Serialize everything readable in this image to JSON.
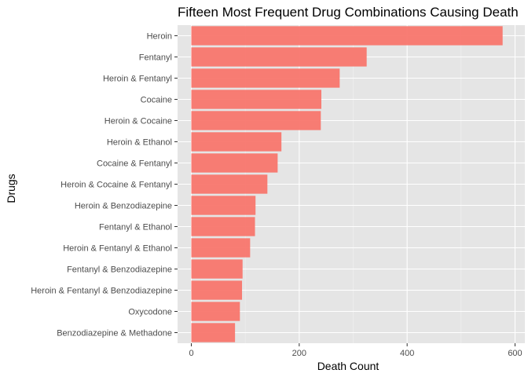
{
  "chart_data": {
    "type": "bar",
    "orientation": "horizontal",
    "title": "Fifteen Most Frequent Drug Combinations Causing Death",
    "xlabel": "Death Count",
    "ylabel": "Drugs",
    "xlim": [
      0,
      600
    ],
    "x_ticks": [
      "0",
      "200",
      "400",
      "600"
    ],
    "grid": true,
    "bar_color": "#F8766D",
    "panel_color": "#E5E5E5",
    "categories": [
      "Heroin",
      "Fentanyl",
      "Heroin & Fentanyl",
      "Cocaine",
      "Heroin & Cocaine",
      "Heroin & Ethanol",
      "Cocaine & Fentanyl",
      "Heroin & Cocaine & Fentanyl",
      "Heroin & Benzodiazepine",
      "Fentanyl & Ethanol",
      "Heroin & Fentanyl & Ethanol",
      "Fentanyl & Benzodiazepine",
      "Heroin & Fentanyl & Benzodiazepine",
      "Oxycodone",
      "Benzodiazepine & Methadone"
    ],
    "values": [
      577,
      325,
      275,
      241,
      240,
      167,
      160,
      141,
      119,
      118,
      109,
      95,
      94,
      90,
      81
    ]
  }
}
